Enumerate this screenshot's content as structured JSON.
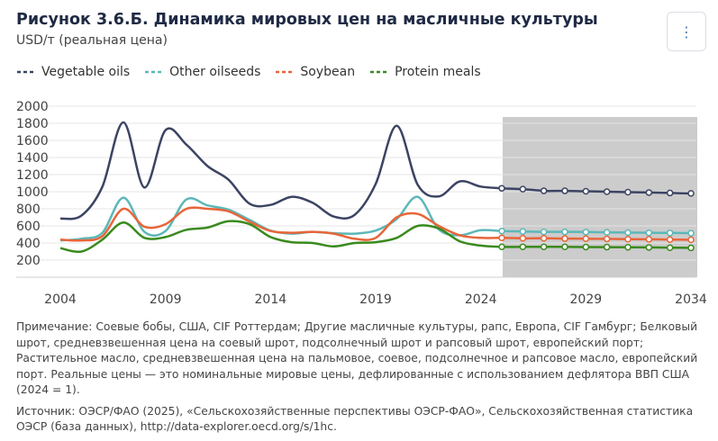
{
  "header": {
    "title": "Рисунок 3.6.Б. Динамика мировых цен на масличные культуры",
    "subtitle": "USD/т (реальная цена)",
    "menu_icon": "vertical-ellipsis-icon"
  },
  "notes": {
    "note": "Примечание: Соевые бобы, США, CIF Роттердам; Другие масличные культуры, рапс, Европа, CIF Гамбург; Белковый шрот, средневзвешенная цена на соевый шрот, подсолнечный шрот и рапсовый шрот, европейский порт; Растительное масло, средневзвешенная цена на пальмовое, соевое, подсолнечное и рапсовое масло, европейский порт. Реальные цены — это номинальные мировые цены, дефлированные с использованием дефлятора ВВП США (2024 = 1).",
    "source": "Источник: ОЭСР/ФАО (2025), «Сельскохозяйственные перспективы ОЭСР-ФАО», Сельскохозяйственная статистика ОЭСР (база данных), http://data-explorer.oecd.org/s/1hc."
  },
  "chart_data": {
    "type": "line",
    "x": [
      2004,
      2005,
      2006,
      2007,
      2008,
      2009,
      2010,
      2011,
      2012,
      2013,
      2014,
      2015,
      2016,
      2017,
      2018,
      2019,
      2020,
      2021,
      2022,
      2023,
      2024,
      2025,
      2026,
      2027,
      2028,
      2029,
      2030,
      2031,
      2032,
      2033,
      2034
    ],
    "xticks": [
      2004,
      2009,
      2014,
      2019,
      2024,
      2029,
      2034
    ],
    "yticks": [
      0,
      200,
      400,
      600,
      800,
      1000,
      1200,
      1400,
      1600,
      1800,
      2000
    ],
    "yticks_shown": [
      200,
      400,
      600,
      800,
      1000,
      1200,
      1400,
      1600,
      1800,
      2000
    ],
    "ylim": [
      0,
      2000
    ],
    "xlim": [
      2004,
      2034
    ],
    "projection_start": 2025,
    "projection_shade_color": "#cccccc",
    "grid": "horizontal",
    "legend_position": "top",
    "series": [
      {
        "name": "Vegetable oils",
        "color": "#3c4463",
        "values": [
          685,
          720,
          1060,
          1810,
          1050,
          1720,
          1550,
          1300,
          1140,
          860,
          845,
          940,
          870,
          710,
          730,
          1090,
          1770,
          1080,
          945,
          1120,
          1060,
          1040,
          1030,
          1010,
          1010,
          1005,
          1000,
          995,
          990,
          985,
          980
        ]
      },
      {
        "name": "Other oilseeds",
        "color": "#5cb7b8",
        "values": [
          430,
          450,
          520,
          930,
          530,
          540,
          910,
          840,
          790,
          670,
          545,
          510,
          530,
          515,
          510,
          545,
          680,
          940,
          560,
          490,
          550,
          540,
          535,
          530,
          530,
          528,
          525,
          522,
          520,
          518,
          515
        ]
      },
      {
        "name": "Soybean",
        "color": "#e8653a",
        "values": [
          440,
          430,
          480,
          800,
          590,
          620,
          800,
          800,
          770,
          650,
          540,
          520,
          530,
          510,
          450,
          460,
          700,
          740,
          600,
          490,
          460,
          460,
          455,
          455,
          452,
          450,
          448,
          445,
          443,
          440,
          438
        ]
      },
      {
        "name": "Protein meals",
        "color": "#3a8a1e",
        "values": [
          340,
          300,
          440,
          640,
          460,
          470,
          555,
          580,
          655,
          620,
          470,
          410,
          400,
          360,
          400,
          410,
          460,
          600,
          570,
          420,
          370,
          355,
          355,
          355,
          355,
          353,
          352,
          350,
          348,
          345,
          343
        ]
      }
    ]
  }
}
